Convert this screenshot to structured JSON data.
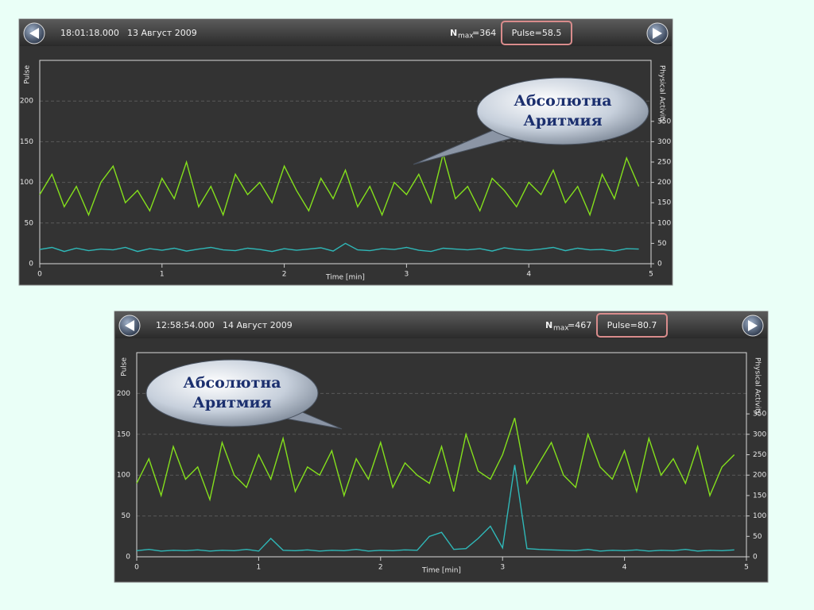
{
  "chart_data": [
    {
      "type": "line",
      "time": "18:01:18.000",
      "date": "13 Август 2009",
      "nmax": {
        "symbol": "N",
        "subscript": "max",
        "value": "=364"
      },
      "pulse_readout": "Pulse=58.5",
      "annotation": [
        "Абсолютна",
        "Аритмия"
      ],
      "x_label": "Time [min]",
      "x": [
        0,
        0.1,
        0.2,
        0.3,
        0.4,
        0.5,
        0.6,
        0.7,
        0.8,
        0.9,
        1,
        1.1,
        1.2,
        1.3,
        1.4,
        1.5,
        1.6,
        1.7,
        1.8,
        1.9,
        2,
        2.1,
        2.2,
        2.3,
        2.4,
        2.5,
        2.6,
        2.7,
        2.8,
        2.9,
        3,
        3.1,
        3.2,
        3.3,
        3.4,
        3.5,
        3.6,
        3.7,
        3.8,
        3.9,
        4,
        4.1,
        4.2,
        4.3,
        4.4,
        4.5,
        4.6,
        4.7,
        4.8,
        4.9
      ],
      "xlim": [
        0,
        5
      ],
      "xticks": [
        0,
        1,
        2,
        3,
        4,
        5
      ],
      "ylim": [
        0,
        250
      ],
      "yticks": [
        0,
        50,
        100,
        150,
        200
      ],
      "y2lim": [
        0,
        500
      ],
      "y2ticks": [
        0,
        50,
        100,
        150,
        200,
        250,
        300,
        350
      ],
      "grid": true,
      "series": [
        {
          "name": "Pulse",
          "color": "#84e01c",
          "values": [
            85,
            110,
            70,
            95,
            60,
            100,
            120,
            75,
            90,
            65,
            105,
            80,
            125,
            70,
            95,
            60,
            110,
            85,
            100,
            75,
            120,
            90,
            65,
            105,
            80,
            115,
            70,
            95,
            60,
            100,
            85,
            110,
            75,
            135,
            80,
            95,
            65,
            105,
            90,
            70,
            100,
            85,
            115,
            75,
            95,
            60,
            110,
            80,
            130,
            95
          ]
        },
        {
          "name": "Physical Activity",
          "color": "#2fb8b8",
          "axis": "y2",
          "values": [
            35,
            40,
            30,
            38,
            32,
            36,
            34,
            40,
            30,
            37,
            33,
            38,
            31,
            36,
            40,
            34,
            32,
            38,
            35,
            30,
            37,
            33,
            36,
            39,
            31,
            50,
            34,
            32,
            37,
            35,
            40,
            33,
            30,
            38,
            36,
            34,
            37,
            31,
            39,
            35,
            33,
            36,
            40,
            32,
            38,
            34,
            35,
            31,
            37,
            36
          ]
        }
      ]
    },
    {
      "type": "line",
      "time": "12:58:54.000",
      "date": "14 Август 2009",
      "nmax": {
        "symbol": "N",
        "subscript": "max",
        "value": "=467"
      },
      "pulse_readout": "Pulse=80.7",
      "annotation": [
        "Абсолютна",
        "Аритмия"
      ],
      "x_label": "Time [min]",
      "x": [
        0,
        0.1,
        0.2,
        0.3,
        0.4,
        0.5,
        0.6,
        0.7,
        0.8,
        0.9,
        1,
        1.1,
        1.2,
        1.3,
        1.4,
        1.5,
        1.6,
        1.7,
        1.8,
        1.9,
        2,
        2.1,
        2.2,
        2.3,
        2.4,
        2.5,
        2.6,
        2.7,
        2.8,
        2.9,
        3,
        3.1,
        3.2,
        3.3,
        3.4,
        3.5,
        3.6,
        3.7,
        3.8,
        3.9,
        4,
        4.1,
        4.2,
        4.3,
        4.4,
        4.5,
        4.6,
        4.7,
        4.8,
        4.9
      ],
      "xlim": [
        0,
        5
      ],
      "xticks": [
        0,
        1,
        2,
        3,
        4,
        5
      ],
      "ylim": [
        0,
        250
      ],
      "yticks": [
        0,
        50,
        100,
        150,
        200
      ],
      "y2lim": [
        0,
        500
      ],
      "y2ticks": [
        0,
        50,
        100,
        150,
        200,
        250,
        300,
        350
      ],
      "grid": true,
      "series": [
        {
          "name": "Pulse",
          "color": "#84e01c",
          "values": [
            90,
            120,
            75,
            135,
            95,
            110,
            70,
            140,
            100,
            85,
            125,
            95,
            145,
            80,
            110,
            100,
            130,
            75,
            120,
            95,
            140,
            85,
            115,
            100,
            90,
            135,
            80,
            150,
            105,
            95,
            125,
            170,
            90,
            115,
            140,
            100,
            85,
            150,
            110,
            95,
            130,
            80,
            145,
            100,
            120,
            90,
            135,
            75,
            110,
            125
          ]
        },
        {
          "name": "Physical Activity",
          "color": "#2fb8b8",
          "axis": "y2",
          "values": [
            15,
            18,
            14,
            16,
            15,
            17,
            14,
            16,
            15,
            18,
            14,
            45,
            16,
            15,
            17,
            14,
            16,
            15,
            18,
            14,
            16,
            15,
            17,
            16,
            50,
            60,
            18,
            20,
            45,
            75,
            22,
            225,
            20,
            18,
            17,
            16,
            15,
            18,
            14,
            16,
            15,
            17,
            14,
            16,
            15,
            18,
            14,
            16,
            15,
            17
          ]
        }
      ]
    }
  ]
}
